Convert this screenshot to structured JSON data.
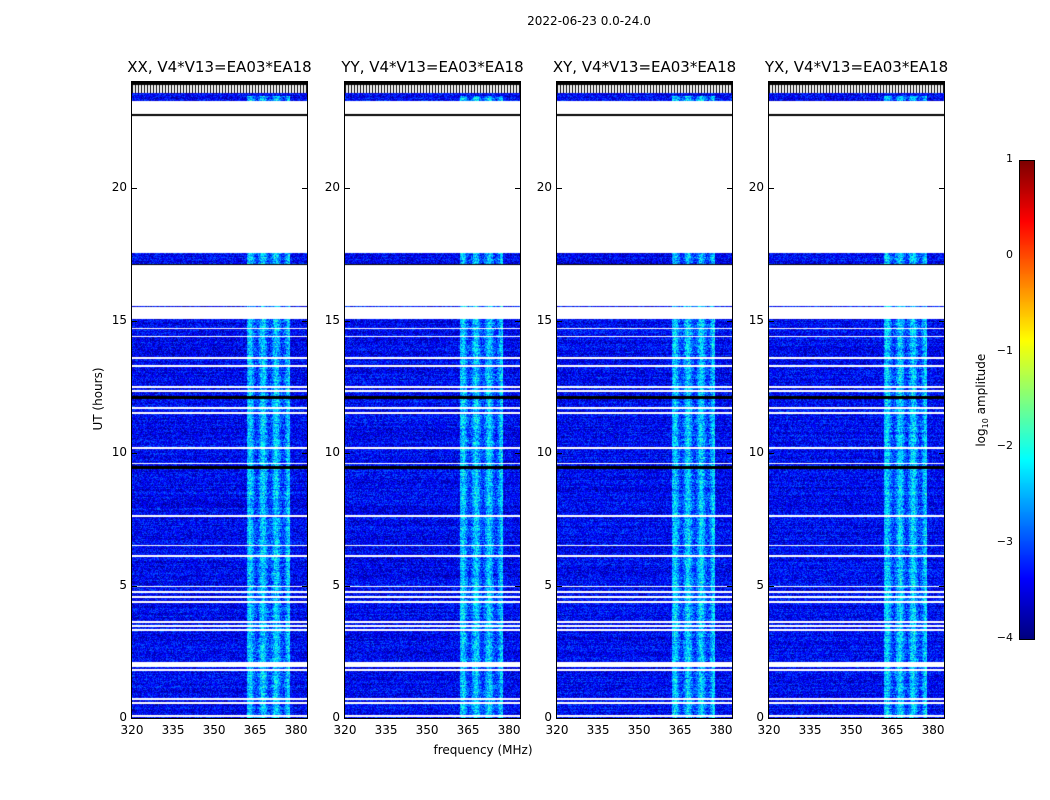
{
  "chart_data": {
    "type": "heatmap",
    "title": "2022-06-23 0.0-24.0",
    "panels": [
      {
        "title": "XX, V4*V13=EA03*EA18"
      },
      {
        "title": "YY, V4*V13=EA03*EA18"
      },
      {
        "title": "XY, V4*V13=EA03*EA18"
      },
      {
        "title": "YX, V4*V13=EA03*EA18"
      }
    ],
    "xlabel": "frequency (MHz)",
    "ylabel": "UT (hours)",
    "xlim": [
      320,
      384
    ],
    "ylim": [
      0,
      24
    ],
    "xticks": [
      "320",
      "335",
      "350",
      "365",
      "380"
    ],
    "xtick_values": [
      320,
      335,
      350,
      365,
      380
    ],
    "yticks": [
      "0",
      "5",
      "10",
      "15",
      "20"
    ],
    "ytick_values": [
      0,
      5,
      10,
      15,
      20
    ],
    "colorbar": {
      "label_main": "log",
      "label_sub": "10",
      "label_rest": " amplitude",
      "range": [
        -4,
        1
      ],
      "ticks": [
        "1",
        "0",
        "−1",
        "−2",
        "−3",
        "−4"
      ],
      "tick_values": [
        1,
        0,
        -1,
        -2,
        -3,
        -4
      ],
      "colormap": "jet"
    },
    "flagged_hours": [
      [
        22.8,
        23.3
      ],
      [
        17.55,
        22.75
      ],
      [
        15.55,
        17.1
      ],
      [
        15.05,
        15.5
      ],
      [
        1.9,
        2.1
      ]
    ],
    "flag_lines_hours": [
      14.7,
      14.4,
      13.6,
      13.3,
      12.5,
      12.35,
      11.7,
      11.5,
      10.2,
      9.6,
      7.6,
      6.5,
      6.1,
      4.95,
      4.75,
      4.55,
      4.35,
      3.6,
      3.45,
      3.3,
      1.8,
      0.7,
      0.55,
      0.05
    ],
    "bright_band_mhz": [
      362,
      378
    ],
    "background_level": -3.4,
    "band_level": -2.4
  }
}
